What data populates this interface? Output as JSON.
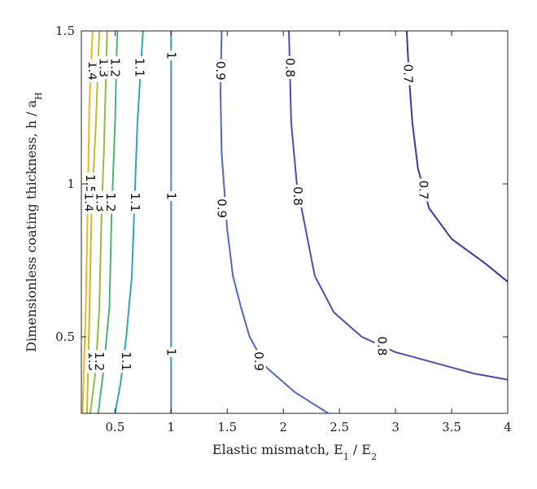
{
  "chart_data": {
    "type": "contour",
    "xlabel": "Elastic mismatch, E",
    "xlabel_sub1": "1",
    "xlabel_mid": " / E",
    "xlabel_sub2": "2",
    "ylabel": "Dimensionless coating thickness, h / a",
    "ylabel_sub": "H",
    "xlim": [
      0.2,
      4
    ],
    "ylim": [
      0.25,
      1.5
    ],
    "x_ticks": [
      0.5,
      1,
      1.5,
      2,
      2.5,
      3,
      3.5,
      4
    ],
    "x_tick_labels": [
      "0.5",
      "1",
      "1.5",
      "2",
      "2.5",
      "3",
      "3.5",
      "4"
    ],
    "y_ticks": [
      0.5,
      1,
      1.5
    ],
    "y_tick_labels": [
      "0.5",
      "1",
      "1.5"
    ],
    "levels": [
      {
        "level": "1.5",
        "color": "#f3b619",
        "points": [
          [
            0.21,
            0.25
          ],
          [
            0.24,
            0.6
          ],
          [
            0.26,
            1.0
          ],
          [
            0.27,
            1.25
          ],
          [
            0.3,
            1.5
          ]
        ]
      },
      {
        "level": "1.4",
        "color": "#c7b92c",
        "points": [
          [
            0.25,
            0.25
          ],
          [
            0.27,
            0.55
          ],
          [
            0.29,
            0.9
          ],
          [
            0.33,
            1.2
          ],
          [
            0.36,
            1.5
          ]
        ]
      },
      {
        "level": "1.3",
        "color": "#93bd3e",
        "points": [
          [
            0.28,
            0.25
          ],
          [
            0.33,
            0.4
          ],
          [
            0.36,
            0.6
          ],
          [
            0.38,
            0.9
          ],
          [
            0.4,
            1.1
          ],
          [
            0.43,
            1.5
          ]
        ]
      },
      {
        "level": "1.2",
        "color": "#4ab56e",
        "points": [
          [
            0.35,
            0.25
          ],
          [
            0.4,
            0.4
          ],
          [
            0.45,
            0.6
          ],
          [
            0.47,
            0.9
          ],
          [
            0.5,
            1.2
          ],
          [
            0.52,
            1.5
          ]
        ]
      },
      {
        "level": "1.1",
        "color": "#2ba8b8",
        "points": [
          [
            0.5,
            0.25
          ],
          [
            0.55,
            0.35
          ],
          [
            0.6,
            0.5
          ],
          [
            0.65,
            0.7
          ],
          [
            0.67,
            0.9
          ],
          [
            0.7,
            1.2
          ],
          [
            0.75,
            1.5
          ]
        ]
      },
      {
        "level": "1",
        "color": "#3e8fd3",
        "points": [
          [
            1.0,
            0.25
          ],
          [
            1.0,
            1.5
          ]
        ]
      },
      {
        "level": "0.9",
        "color": "#5366c9",
        "points": [
          [
            2.4,
            0.25
          ],
          [
            2.1,
            0.32
          ],
          [
            1.85,
            0.4
          ],
          [
            1.7,
            0.5
          ],
          [
            1.62,
            0.6
          ],
          [
            1.55,
            0.7
          ],
          [
            1.5,
            0.85
          ],
          [
            1.45,
            1.1
          ],
          [
            1.44,
            1.3
          ],
          [
            1.45,
            1.5
          ]
        ]
      },
      {
        "level": "0.8",
        "color": "#5249bb",
        "points": [
          [
            4.0,
            0.36
          ],
          [
            3.7,
            0.38
          ],
          [
            3.4,
            0.41
          ],
          [
            3.0,
            0.45
          ],
          [
            2.7,
            0.5
          ],
          [
            2.45,
            0.58
          ],
          [
            2.28,
            0.7
          ],
          [
            2.2,
            0.85
          ],
          [
            2.12,
            1.0
          ],
          [
            2.07,
            1.2
          ],
          [
            2.05,
            1.5
          ]
        ]
      },
      {
        "level": "0.7",
        "color": "#4a2fa8",
        "points": [
          [
            4.0,
            0.68
          ],
          [
            3.8,
            0.74
          ],
          [
            3.5,
            0.82
          ],
          [
            3.3,
            0.92
          ],
          [
            3.2,
            1.05
          ],
          [
            3.15,
            1.2
          ],
          [
            3.12,
            1.35
          ],
          [
            3.1,
            1.5
          ]
        ]
      }
    ],
    "labels": [
      {
        "text": "1.5",
        "x": 0.28,
        "y": 1.0
      },
      {
        "text": "1.4",
        "x": 0.3,
        "y": 1.37
      },
      {
        "text": "1.3",
        "x": 0.4,
        "y": 1.38
      },
      {
        "text": "1.2",
        "x": 0.5,
        "y": 1.38
      },
      {
        "text": "1.1",
        "x": 0.72,
        "y": 1.38
      },
      {
        "text": "1",
        "x": 1.0,
        "y": 1.42
      },
      {
        "text": "0.9",
        "x": 1.44,
        "y": 1.37
      },
      {
        "text": "0.8",
        "x": 2.06,
        "y": 1.38
      },
      {
        "text": "0.7",
        "x": 3.11,
        "y": 1.36
      },
      {
        "text": "1.4",
        "x": 0.27,
        "y": 0.94
      },
      {
        "text": "1.3",
        "x": 0.37,
        "y": 0.94
      },
      {
        "text": "1.2",
        "x": 0.46,
        "y": 0.94
      },
      {
        "text": "1.1",
        "x": 0.68,
        "y": 0.94
      },
      {
        "text": "1",
        "x": 1.0,
        "y": 0.96
      },
      {
        "text": "0.9",
        "x": 1.45,
        "y": 0.92
      },
      {
        "text": "0.8",
        "x": 2.13,
        "y": 0.96
      },
      {
        "text": "0.7",
        "x": 3.25,
        "y": 0.98
      },
      {
        "text": "1.3",
        "x": 0.3,
        "y": 0.42
      },
      {
        "text": "1.2",
        "x": 0.36,
        "y": 0.42
      },
      {
        "text": "1.1",
        "x": 0.6,
        "y": 0.42
      },
      {
        "text": "1",
        "x": 1.0,
        "y": 0.45
      },
      {
        "text": "0.9",
        "x": 1.78,
        "y": 0.42
      },
      {
        "text": "0.8",
        "x": 2.88,
        "y": 0.47
      }
    ]
  }
}
